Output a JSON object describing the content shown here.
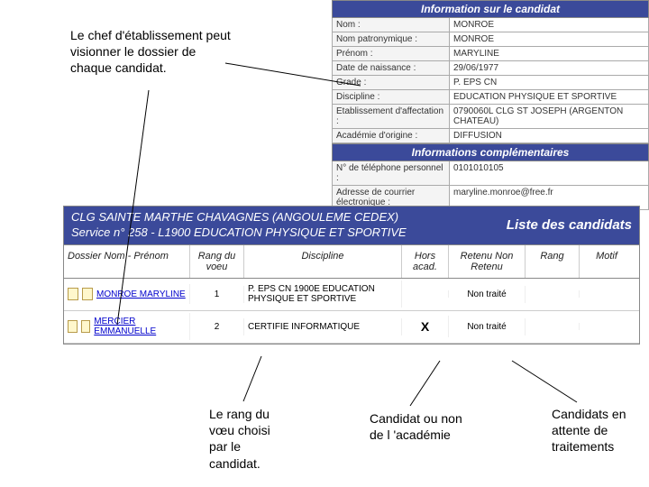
{
  "callouts": {
    "top": "Le chef d'établissement peut visionner le dossier de chaque candidat.",
    "b1": "Le rang du vœu choisi par le candidat.",
    "b2": "Candidat ou non de l 'académie",
    "b3": "Candidats en attente de traitements"
  },
  "info": {
    "banner1": "Information sur le candidat",
    "banner2": "Informations complémentaires",
    "rows": [
      {
        "label": "Nom :",
        "value": "MONROE"
      },
      {
        "label": "Nom patronymique :",
        "value": "MONROE"
      },
      {
        "label": "Prénom :",
        "value": "MARYLINE"
      },
      {
        "label": "Date de naissance :",
        "value": "29/06/1977"
      },
      {
        "label": "Grade :",
        "value": "P. EPS CN"
      },
      {
        "label": "Discipline :",
        "value": "EDUCATION PHYSIQUE ET SPORTIVE"
      },
      {
        "label": "Etablissement d'affectation :",
        "value": "0790060L CLG ST JOSEPH (ARGENTON CHATEAU)"
      },
      {
        "label": "Académie d'origine :",
        "value": "DIFFUSION"
      }
    ],
    "rows2": [
      {
        "label": "N° de téléphone personnel :",
        "value": "0101010105"
      },
      {
        "label": "Adresse de courrier électronique :",
        "value": "maryline.monroe@free.fr"
      }
    ]
  },
  "list": {
    "header_line1": "CLG SAINTE MARTHE CHAVAGNES (ANGOULEME CEDEX)",
    "header_line2": "Service n° 258 - L1900 EDUCATION PHYSIQUE ET SPORTIVE",
    "header_right": "Liste des candidats",
    "cols": {
      "dossier": "Dossier Nom - Prénom",
      "rang": "Rang du voeu",
      "disc": "Discipline",
      "hors": "Hors acad.",
      "retenu": "Retenu Non Retenu",
      "rangm": "Rang",
      "motif": "Motif"
    },
    "rows": [
      {
        "name": "MONROE MARYLINE",
        "rang": "1",
        "disc": "P. EPS CN 1900E EDUCATION PHYSIQUE ET SPORTIVE",
        "hors": "",
        "retenu": "Non traité"
      },
      {
        "name": "MERCIER EMMANUELLE",
        "rang": "2",
        "disc": "CERTIFIE INFORMATIQUE",
        "hors": "X",
        "retenu": "Non traité"
      }
    ]
  }
}
